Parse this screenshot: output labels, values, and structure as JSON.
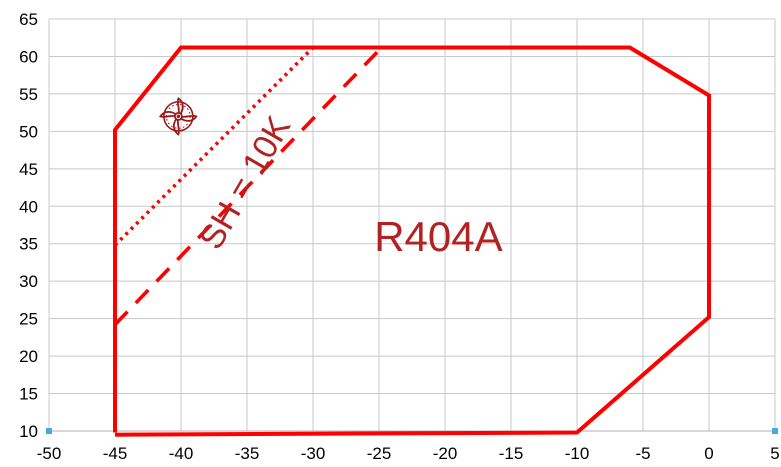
{
  "chart_data": {
    "type": "line",
    "title": "",
    "xlabel": "",
    "ylabel": "",
    "xlim": [
      -50,
      5
    ],
    "ylim": [
      10,
      65
    ],
    "xticks": [
      -50,
      -45,
      -40,
      -35,
      -30,
      -25,
      -20,
      -15,
      -10,
      -5,
      0,
      5
    ],
    "yticks": [
      10,
      15,
      20,
      25,
      30,
      35,
      40,
      45,
      50,
      55,
      60,
      65
    ],
    "x_tick_labels": [
      "-50",
      "-45",
      "-40",
      "-35",
      "-30",
      "-25",
      "-20",
      "-15",
      "-10",
      "-5",
      "0",
      "5"
    ],
    "y_tick_labels": [
      "10",
      "15",
      "20",
      "25",
      "30",
      "35",
      "40",
      "45",
      "50",
      "55",
      "60",
      "65"
    ],
    "grid": true,
    "series": [
      {
        "style": "solid",
        "color": "#ff0000",
        "points": [
          [
            -45,
            9.8
          ],
          [
            -45,
            50.2
          ],
          [
            -40,
            61.2
          ],
          [
            -6,
            61.2
          ],
          [
            0,
            54.8
          ],
          [
            0,
            25.2
          ],
          [
            -10,
            9.8
          ],
          [
            -45,
            9.5
          ]
        ]
      },
      {
        "style": "dotted",
        "color": "#ff0000",
        "points": [
          [
            -45,
            34.8
          ],
          [
            -30,
            61.2
          ]
        ]
      },
      {
        "style": "dashed",
        "color": "#ff0000",
        "points": [
          [
            -45,
            24.2
          ],
          [
            -24.8,
            61.2
          ]
        ]
      }
    ],
    "annotations": [
      {
        "text": "R404A",
        "x": -20.5,
        "y": 35.5,
        "color": "#b22222"
      },
      {
        "text": "SH = 10K",
        "x": -35,
        "y": 43,
        "rotation": -60,
        "color": "#b22222"
      }
    ],
    "marker_points": [
      [
        -50,
        10
      ],
      [
        5,
        10
      ]
    ],
    "marker_color": "#4aa8e0",
    "icon": {
      "name": "fan-icon",
      "x": -40.2,
      "y": 52,
      "color": "#9a1b1b"
    }
  }
}
